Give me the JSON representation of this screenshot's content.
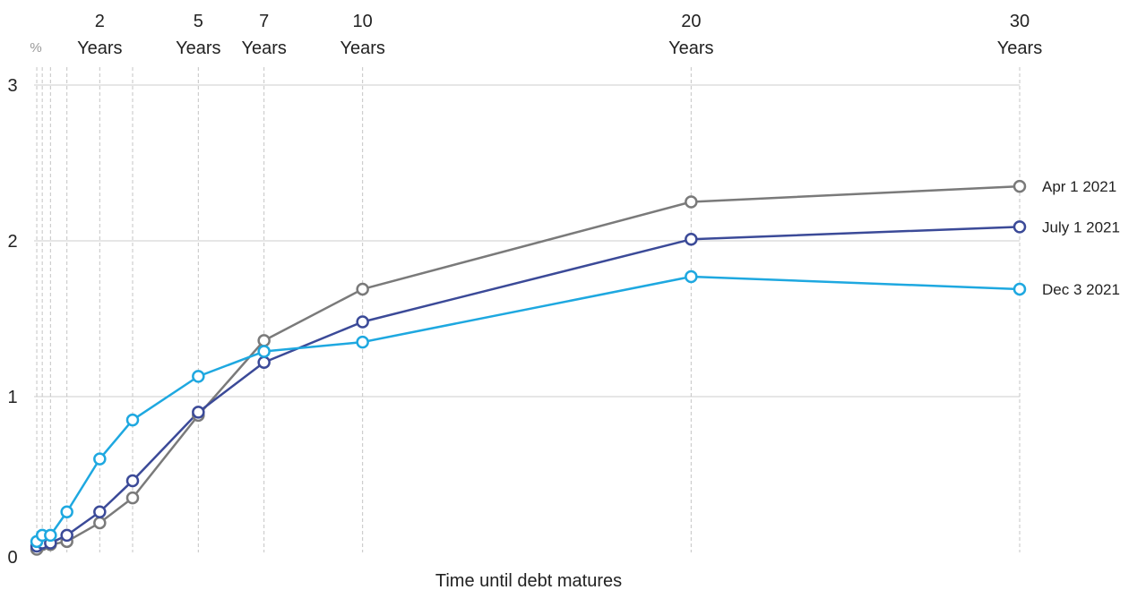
{
  "chart_data": {
    "type": "line",
    "xlabel": "Time until debt matures",
    "ylabel": "%",
    "ylim": [
      0,
      3
    ],
    "y_ticks": [
      "0",
      "1",
      "2",
      "3"
    ],
    "x_ticks": [
      {
        "value": 2,
        "label": [
          "2",
          "Years"
        ]
      },
      {
        "value": 5,
        "label": [
          "5",
          "Years"
        ]
      },
      {
        "value": 7,
        "label": [
          "7",
          "Years"
        ]
      },
      {
        "value": 10,
        "label": [
          "10",
          "Years"
        ]
      },
      {
        "value": 20,
        "label": [
          "20",
          "Years"
        ]
      },
      {
        "value": 30,
        "label": [
          "30",
          "Years"
        ]
      }
    ],
    "x": [
      0.0833,
      0.25,
      0.5,
      1,
      2,
      3,
      5,
      7,
      10,
      20,
      30
    ],
    "series": [
      {
        "name": "Apr 1 2021",
        "color": "#7a7a7a",
        "values": [
          0.02,
          0.05,
          0.05,
          0.07,
          0.19,
          0.35,
          0.88,
          1.36,
          1.69,
          2.25,
          2.35
        ]
      },
      {
        "name": "July 1 2021",
        "color": "#3b4a98",
        "values": [
          0.04,
          0.06,
          0.06,
          0.11,
          0.26,
          0.46,
          0.9,
          1.22,
          1.48,
          2.01,
          2.09
        ]
      },
      {
        "name": "Dec 3 2021",
        "color": "#1ea8e0",
        "values": [
          0.07,
          0.11,
          0.11,
          0.26,
          0.6,
          0.85,
          1.13,
          1.29,
          1.35,
          1.77,
          1.69
        ]
      }
    ],
    "grid": true,
    "legend": "right, at line ends"
  }
}
